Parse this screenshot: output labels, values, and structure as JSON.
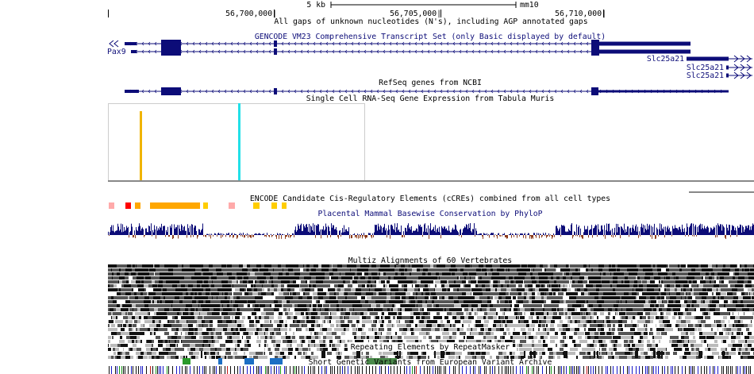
{
  "ruler": {
    "scale": "5 kb",
    "assembly": "mm10",
    "positions": [
      "56,700,000|",
      "56,705,000|",
      "56,710,000|"
    ],
    "gap_track": "All gaps of unknown nucleotides (N's), including AGP annotated gaps"
  },
  "tracks": {
    "gencode": {
      "title": "GENCODE VM23 Comprehensive Transcript Set (only Basic displayed by default)",
      "genes": [
        "Pax9",
        "Slc25a21",
        "Slc25a21",
        "Slc25a21"
      ]
    },
    "refseq": {
      "title": "RefSeq genes from NCBI"
    },
    "single_cell": {
      "title": "Single Cell RNA-Seq Gene Expression from Tabula Muris"
    },
    "ccre": {
      "title": "ENCODE Candidate Cis-Regulatory Elements (cCREs) combined from all cell types"
    },
    "phylop": {
      "title": "Placental Mammal Basewise Conservation by PhyloP"
    },
    "multiz": {
      "title": "Multiz Alignments of 60 Vertebrates"
    },
    "repeatmasker": {
      "title": "Repeating Elements by RepeatMasker"
    },
    "eva": {
      "title": "Short Genetic Variants from European Variant Archive"
    }
  }
}
